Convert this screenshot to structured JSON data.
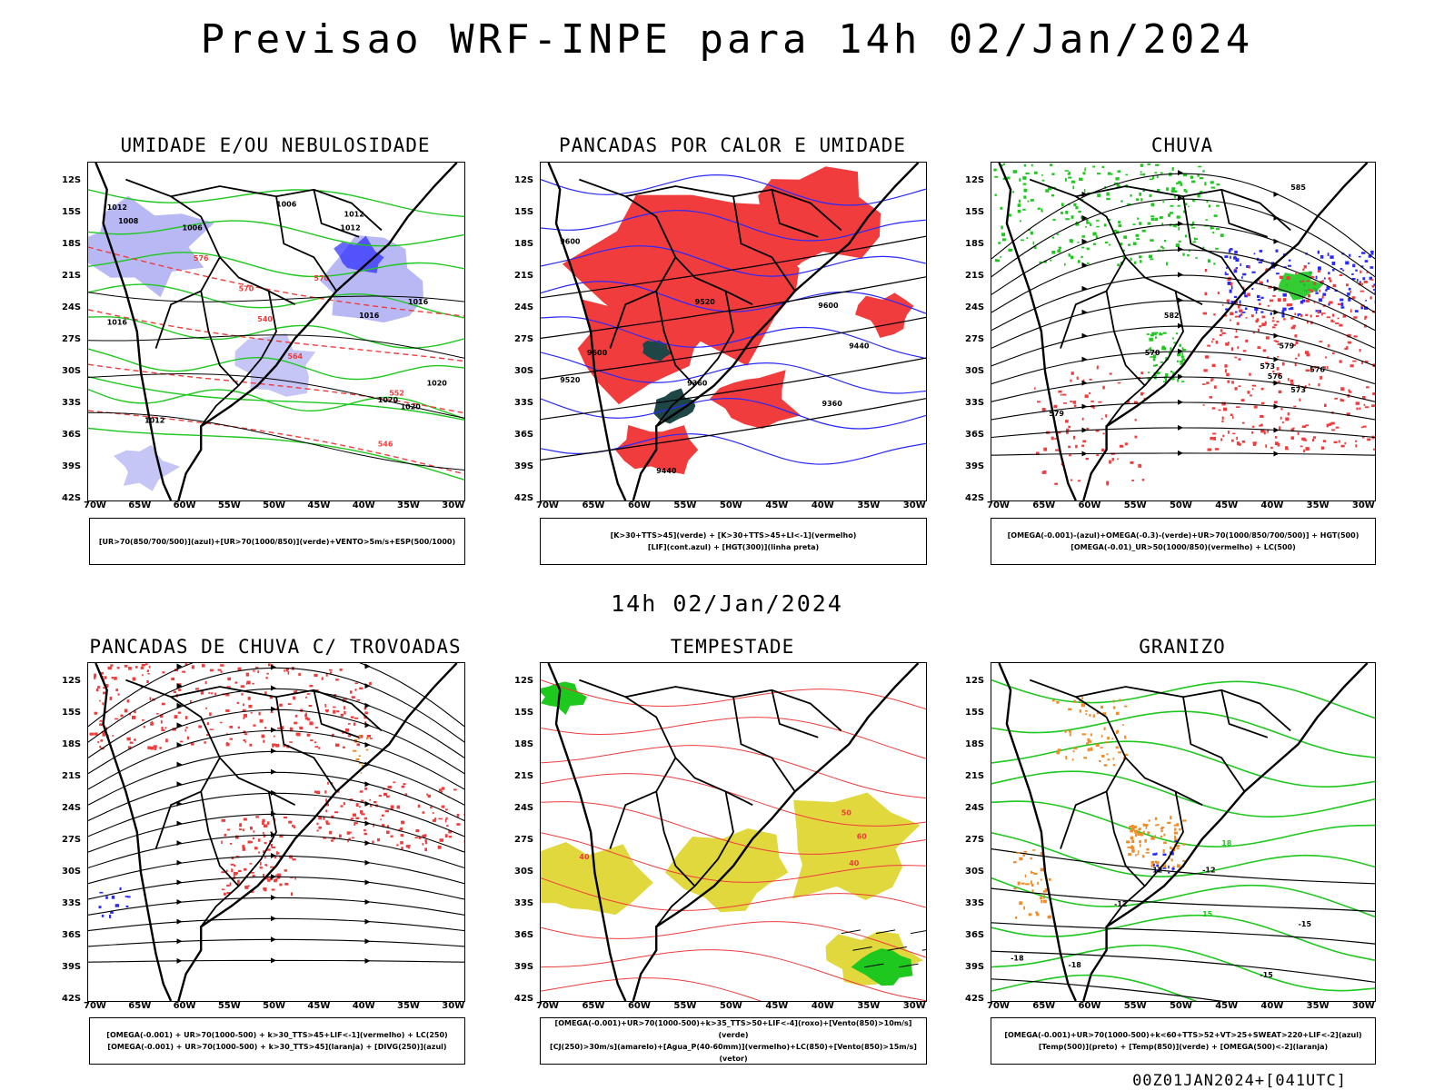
{
  "title": "Previsao WRF-INPE  para 14h 02/Jan/2024",
  "subtitle": "14h 02/Jan/2024",
  "footer": "00Z01JAN2024+[041UTC]",
  "lat_ticks": [
    "12S",
    "15S",
    "18S",
    "21S",
    "24S",
    "27S",
    "30S",
    "33S",
    "36S",
    "39S",
    "42S"
  ],
  "lon_ticks": [
    "70W",
    "65W",
    "60W",
    "55W",
    "50W",
    "45W",
    "40W",
    "35W",
    "30W"
  ],
  "colors": {
    "red": "#f03c3c",
    "green": "#1ec81e",
    "blue": "#2828ff",
    "lavender": "#a0a0f0",
    "darkgreen": "#1e4646",
    "yellow": "#e0d83c",
    "orange": "#f08c28",
    "purple": "#b040d0"
  },
  "panels": [
    {
      "id": "umidade",
      "title": "UMIDADE E/OU NEBULOSIDADE",
      "legend": [
        "[UR>70(850/700/500)](azul)+[UR>70(1000/850)](verde)+VENTO>5m/s+ESP(500/1000)"
      ],
      "contour_labels": [
        "1012",
        "1008",
        "1006",
        "1006",
        "1012",
        "1012",
        "1016",
        "1016",
        "1016",
        "1020",
        "1020",
        "1020",
        "1012",
        "570",
        "576",
        "570",
        "564",
        "552",
        "546",
        "540"
      ]
    },
    {
      "id": "pancadas-calor",
      "title": "PANCADAS POR CALOR E UMIDADE",
      "legend": [
        "[K>30+TTS>45](verde) + [K>30+TTS>45+LI<-1](vermelho)",
        "[LIF](cont.azul) + [HGT(300)](linha preta)"
      ],
      "contour_labels": [
        "9600",
        "9600",
        "9520",
        "9520",
        "9440",
        "9440",
        "9360",
        "9360",
        "9600"
      ]
    },
    {
      "id": "chuva",
      "title": "CHUVA",
      "legend": [
        "[OMEGA(-0.001)-(azul)+OMEGA(-0.3)-(verde)+UR>70(1000/850/700/500)] + HGT(500)",
        "[OMEGA(-0.01)_UR>50(1000/850)(vermelho) + LC(500)"
      ],
      "contour_labels": [
        "585",
        "582",
        "579",
        "576",
        "573",
        "570",
        "573",
        "579",
        "576"
      ]
    },
    {
      "id": "pancadas-trovoadas",
      "title": "PANCADAS DE CHUVA C/ TROVOADAS",
      "legend": [
        "[OMEGA(-0.001) + UR>70(1000-500) + k>30_TTS>45+LIF<-1](vermelho) + LC(250)",
        "[OMEGA(-0.001) + UR>70(1000-500) + k>30_TTS>45](laranja) + [DIVG(250)](azul)"
      ],
      "contour_labels": []
    },
    {
      "id": "tempestade",
      "title": "TEMPESTADE",
      "legend": [
        "[OMEGA(-0.001)+UR>70(1000-500)+k>35_TTS>50+LIF<-4](roxo)+[Vento(850)>10m/s](verde)",
        "[CJ(250)>30m/s](amarelo)+[Agua_P(40-60mm)](vermelho)+LC(850)+[Vento(850)>15m/s](vetor)"
      ],
      "contour_labels": [
        "40",
        "50",
        "60",
        "40"
      ]
    },
    {
      "id": "granizo",
      "title": "GRANIZO",
      "legend": [
        "[OMEGA(-0.001)+UR>70(1000-500)+k<60+TTS>52+VT>25+SWEAT>220+LIF<-2](azul)",
        "[Temp(500)](preto) + [Temp(850)](verde) + [OMEGA(500)<-2](laranja)"
      ],
      "contour_labels": [
        "-12",
        "-12",
        "-15",
        "-18",
        "-18",
        "15",
        "18",
        "12",
        "-15"
      ]
    }
  ]
}
